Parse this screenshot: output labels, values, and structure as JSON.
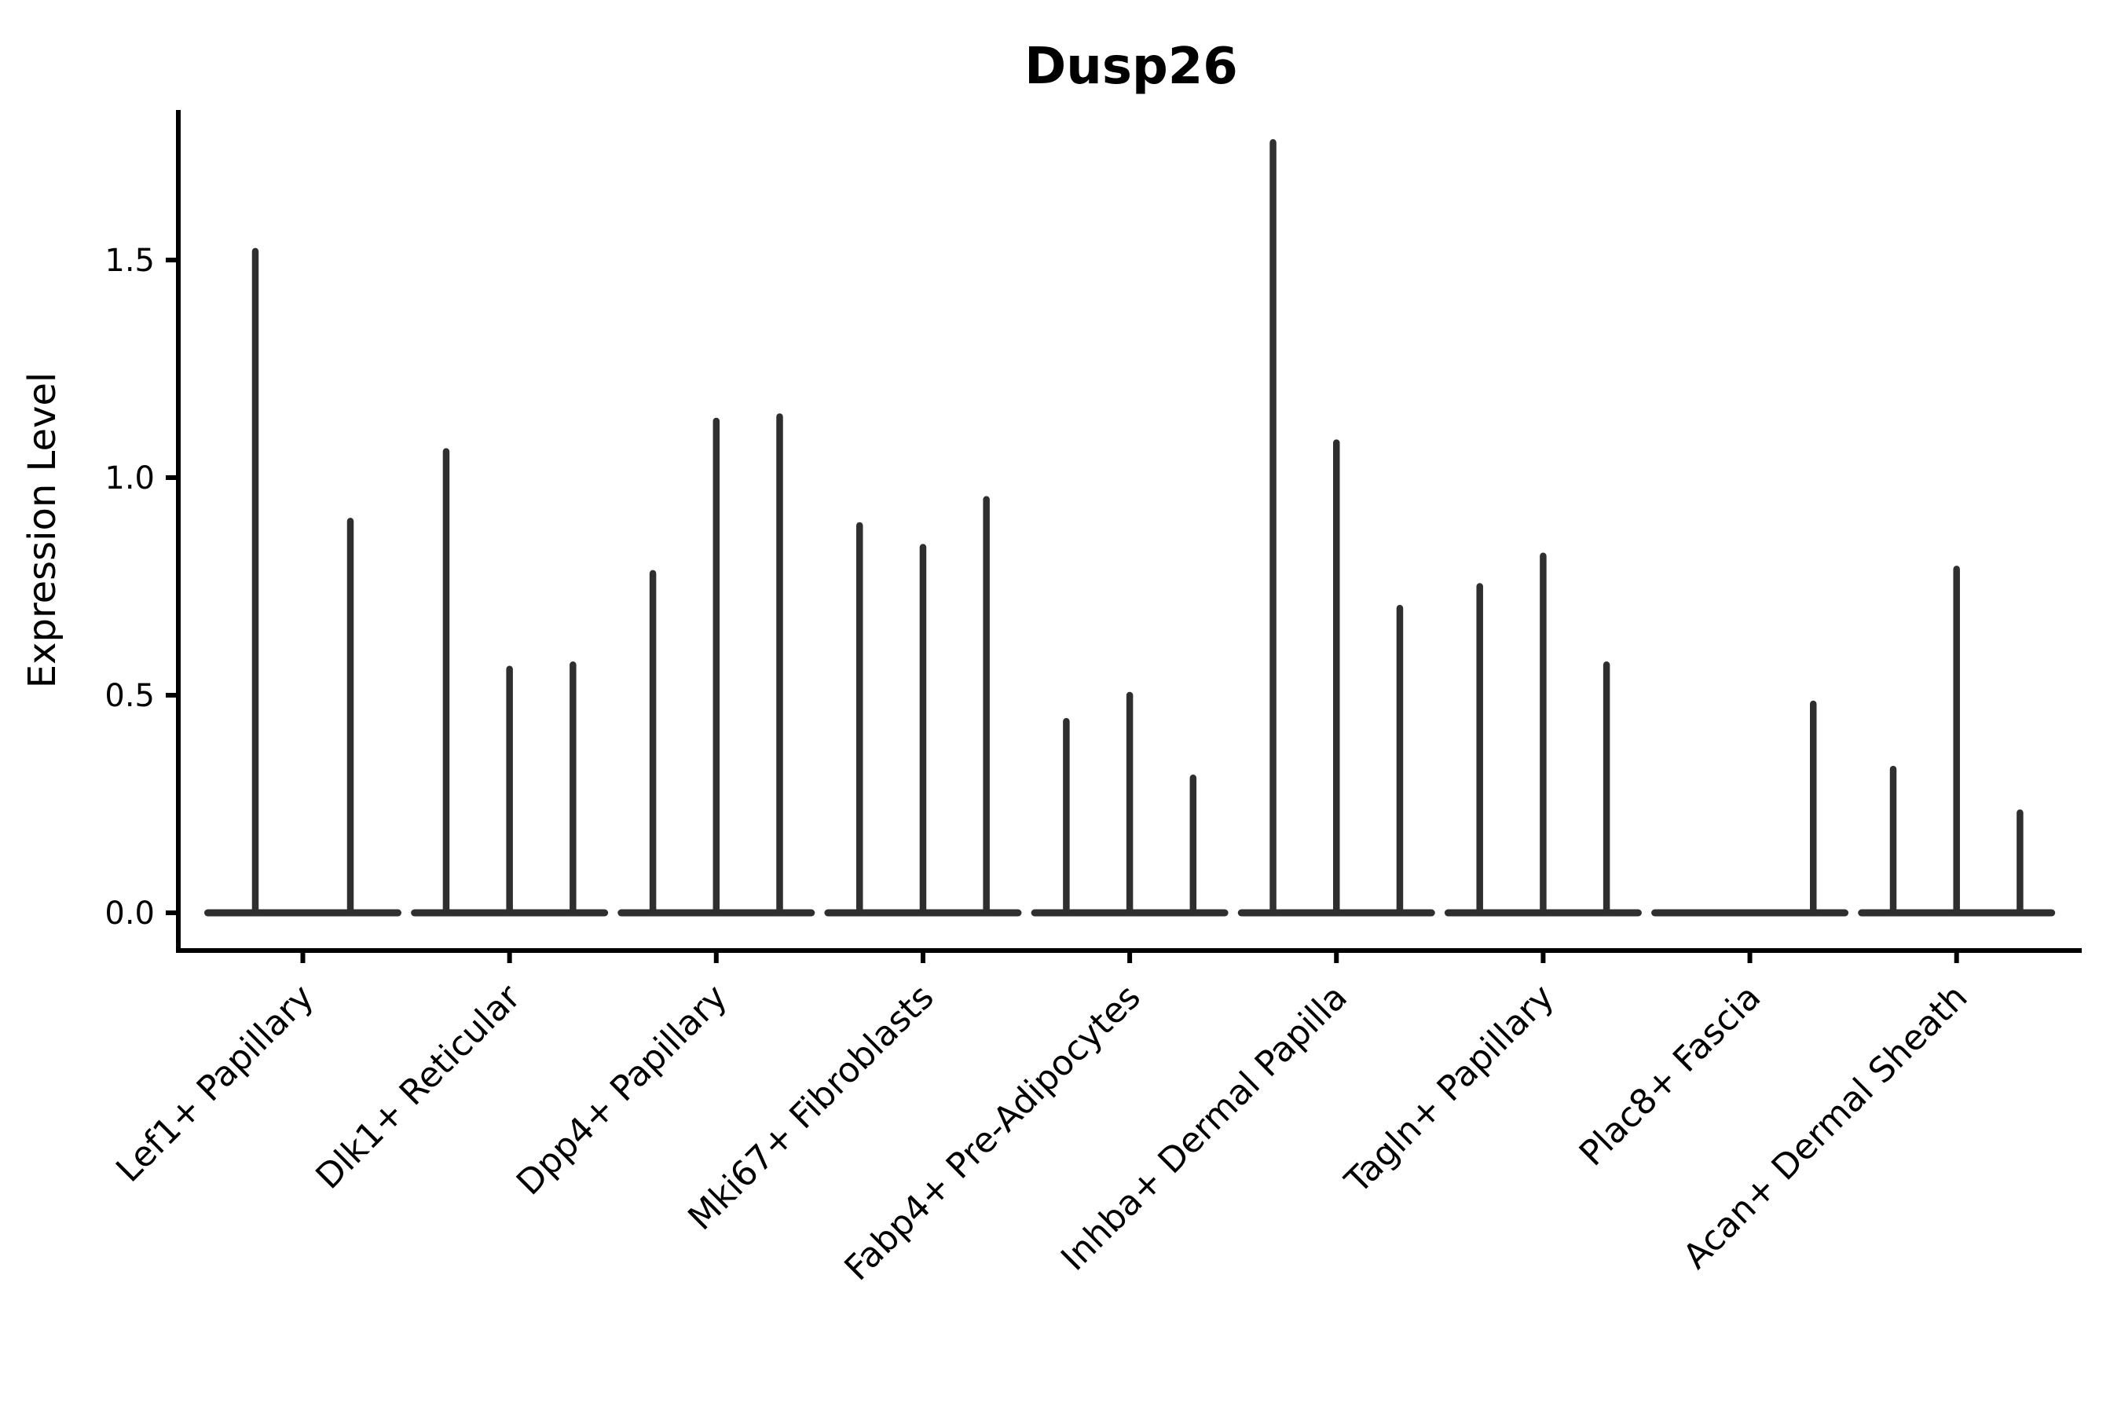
{
  "chart_data": {
    "type": "violin",
    "subtype": "expression-spike-violins",
    "title": "Dusp26",
    "ylabel": "Expression Level",
    "xlabel": "",
    "grid": false,
    "legend": "none",
    "y_ticks": [
      0.0,
      0.5,
      1.0,
      1.5
    ],
    "ylim": [
      -0.09,
      1.85
    ],
    "categories": [
      "Lef1+ Papillary",
      "Dlk1+ Reticular",
      "Dpp4+ Papillary",
      "Mki67+ Fibroblasts",
      "Fabp4+ Pre-Adipocytes",
      "Inhba+ Dermal Papilla",
      "Tagln+ Papillary",
      "Plac8+ Fascia",
      "Acan+ Dermal Sheath"
    ],
    "violin_peaks": [
      [
        1.52,
        0.9
      ],
      [
        1.06,
        0.56,
        0.57
      ],
      [
        0.78,
        1.13,
        1.14
      ],
      [
        0.89,
        0.84,
        0.95
      ],
      [
        0.44,
        0.5,
        0.31
      ],
      [
        1.77,
        1.08,
        0.7
      ],
      [
        0.75,
        0.82,
        0.57
      ],
      [
        0.0,
        0.0,
        0.48
      ],
      [
        0.33,
        0.79,
        0.23
      ]
    ],
    "colors": {
      "violin_line": "#2f2f2f",
      "axis": "#000000",
      "text": "#000000",
      "background": "#ffffff"
    }
  }
}
